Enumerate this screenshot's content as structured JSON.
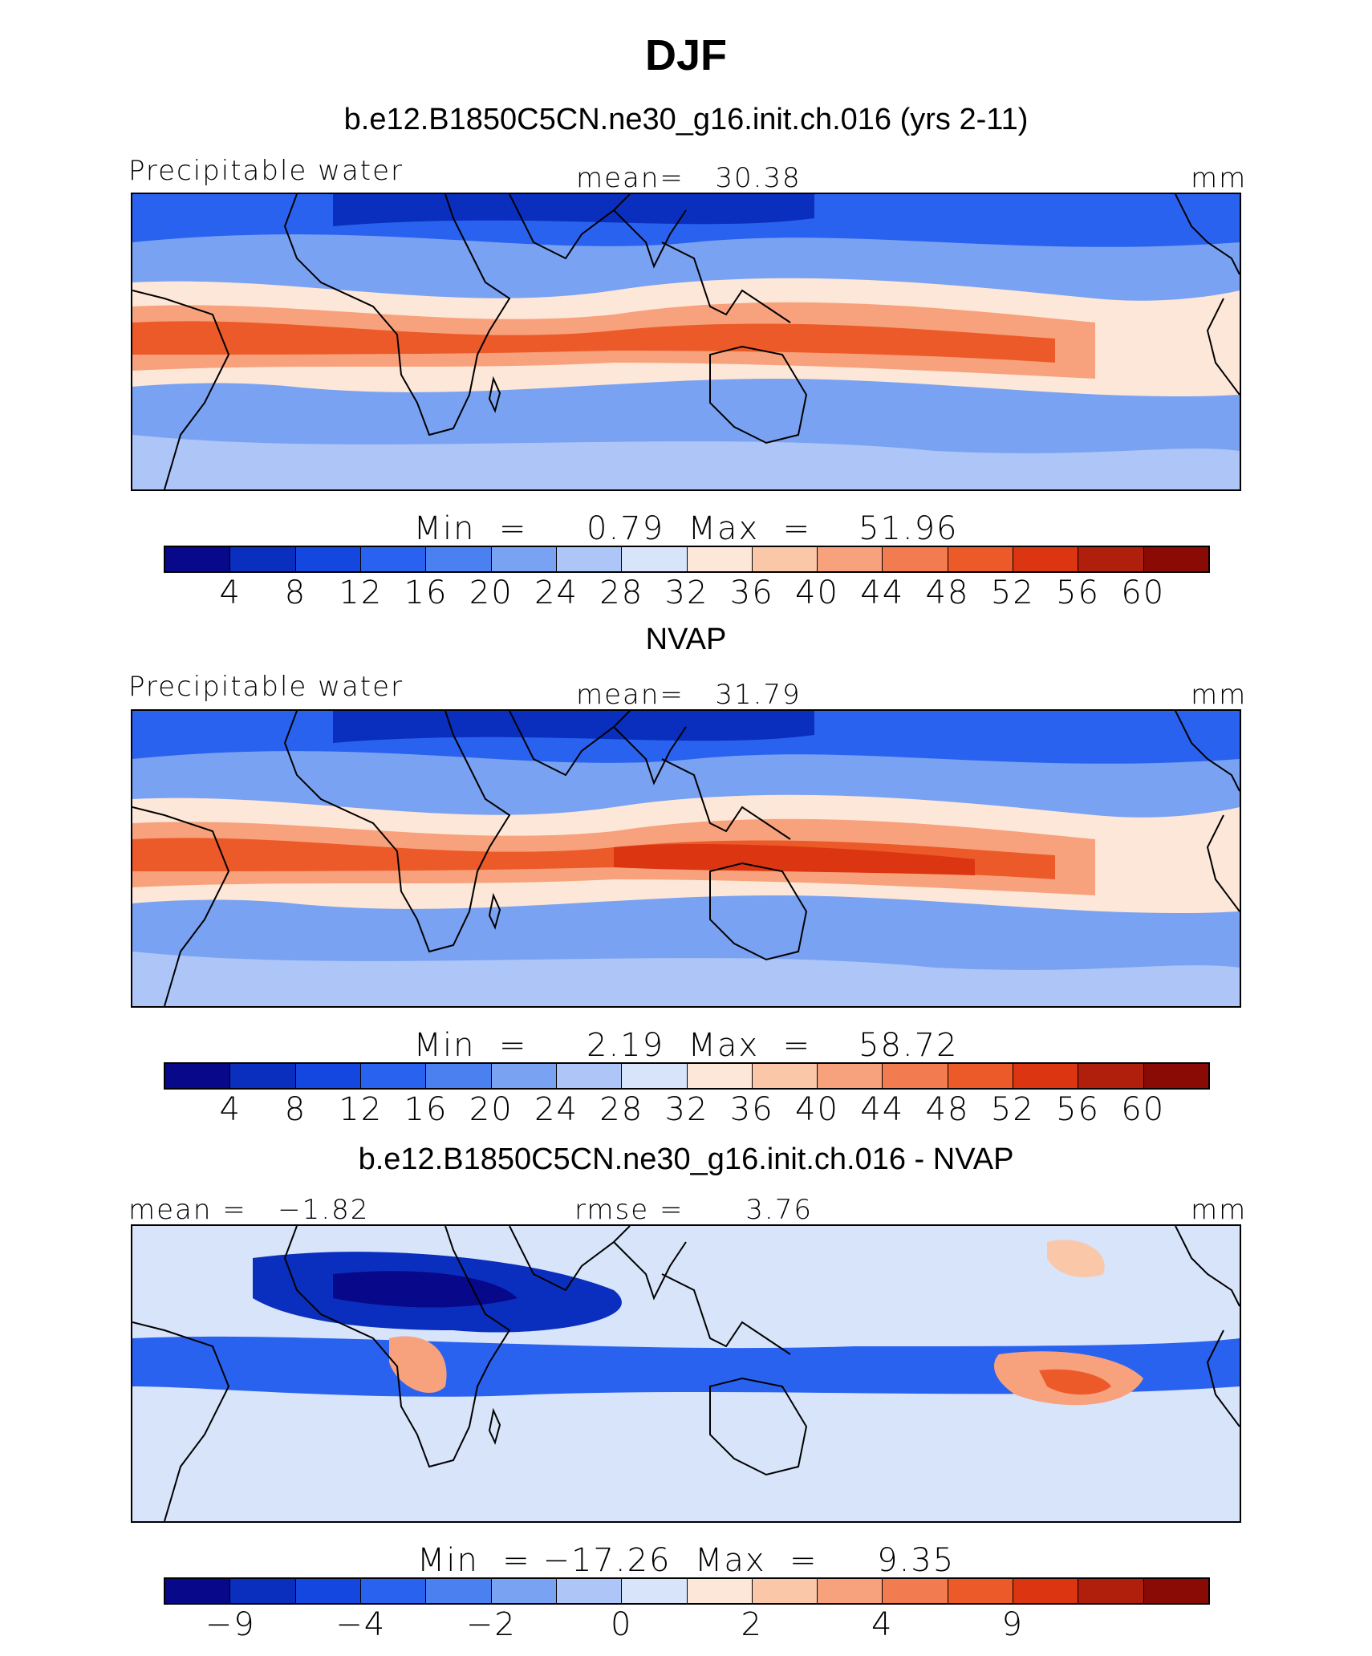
{
  "title": "DJF",
  "colors": [
    "#08088a",
    "#0a2fbe",
    "#1446e0",
    "#2a62f0",
    "#4a80f0",
    "#7aa2f2",
    "#adc6f7",
    "#d7e4fa",
    "#fde7d8",
    "#fbc7a9",
    "#f7a27c",
    "#f27b50",
    "#ec5a2a",
    "#dc3512",
    "#b01e0c",
    "#8a0a05"
  ],
  "panels": [
    {
      "id": "model",
      "title": "b.e12.B1850C5CN.ne30_g16.init.ch.016 (yrs 2-11)",
      "left_label": "Precipitable water",
      "center_label": "mean=   30.38",
      "units": "mm",
      "minmax": "Min  =     0.79  Max  =    51.96",
      "ticks": [
        "4",
        "8",
        "12",
        "16",
        "20",
        "24",
        "28",
        "32",
        "36",
        "40",
        "44",
        "48",
        "52",
        "56",
        "60"
      ]
    },
    {
      "id": "obs",
      "title": "NVAP",
      "left_label": "Precipitable water",
      "center_label": "mean=   31.79",
      "units": "mm",
      "minmax": "Min  =     2.19  Max  =    58.72",
      "ticks": [
        "4",
        "8",
        "12",
        "16",
        "20",
        "24",
        "28",
        "32",
        "36",
        "40",
        "44",
        "48",
        "52",
        "56",
        "60"
      ]
    },
    {
      "id": "diff",
      "title": "b.e12.B1850C5CN.ne30_g16.init.ch.016 - NVAP",
      "left_label": "mean =   −1.82",
      "center_label": "rmse =      3.76",
      "units": "mm",
      "minmax": "Min  = −17.26  Max  =     9.35",
      "ticks": [
        "−9",
        "",
        "−4",
        "",
        "−2",
        "",
        "0",
        "",
        "2",
        "",
        "4",
        "",
        "9"
      ]
    }
  ],
  "chart_data": {
    "type": "heatmap",
    "title": "DJF",
    "variable": "Precipitable water",
    "units": "mm",
    "panels": [
      {
        "name": "b.e12.B1850C5CN.ne30_g16.init.ch.016 (yrs 2-11)",
        "mean": 30.38,
        "min": 0.79,
        "max": 51.96,
        "contour_levels": [
          4,
          8,
          12,
          16,
          20,
          24,
          28,
          32,
          36,
          40,
          44,
          48,
          52,
          56,
          60
        ]
      },
      {
        "name": "NVAP",
        "mean": 31.79,
        "min": 2.19,
        "max": 58.72,
        "contour_levels": [
          4,
          8,
          12,
          16,
          20,
          24,
          28,
          32,
          36,
          40,
          44,
          48,
          52,
          56,
          60
        ]
      },
      {
        "name": "b.e12.B1850C5CN.ne30_g16.init.ch.016 - NVAP",
        "mean": -1.82,
        "rmse": 3.76,
        "min": -17.26,
        "max": 9.35,
        "contour_levels": [
          -9,
          -4,
          -2,
          0,
          2,
          4,
          9
        ]
      }
    ]
  }
}
